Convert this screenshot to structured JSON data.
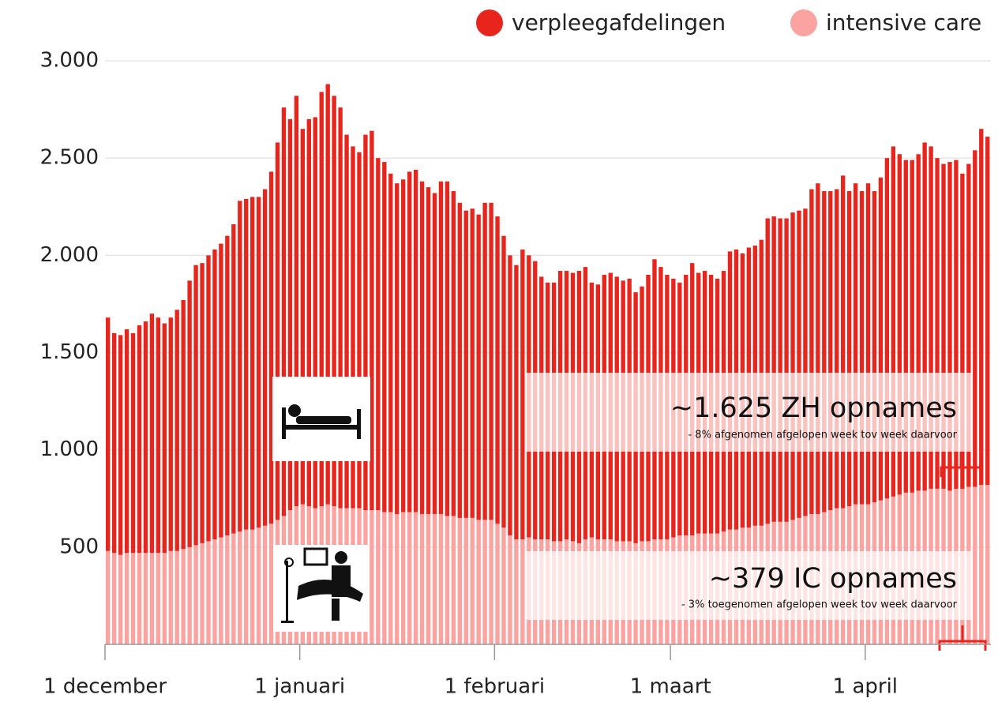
{
  "chart_data": {
    "type": "stacked_bar",
    "categories": [
      "1 december",
      null,
      null,
      null,
      null,
      null,
      null,
      null,
      null,
      null,
      null,
      null,
      null,
      null,
      null,
      null,
      null,
      null,
      null,
      null,
      null,
      null,
      null,
      null,
      null,
      null,
      null,
      null,
      null,
      null,
      null,
      "1 januari",
      null,
      null,
      null,
      null,
      null,
      null,
      null,
      null,
      null,
      null,
      null,
      null,
      null,
      null,
      null,
      null,
      null,
      null,
      null,
      null,
      null,
      null,
      null,
      null,
      null,
      null,
      null,
      null,
      null,
      null,
      "1 februari",
      null,
      null,
      null,
      null,
      null,
      null,
      null,
      null,
      null,
      null,
      null,
      null,
      null,
      null,
      null,
      null,
      null,
      null,
      null,
      null,
      null,
      null,
      null,
      null,
      null,
      null,
      null,
      "1 maart",
      null,
      null,
      null,
      null,
      null,
      null,
      null,
      null,
      null,
      null,
      null,
      null,
      null,
      null,
      null,
      null,
      null,
      null,
      null,
      null,
      null,
      null,
      null,
      null,
      null,
      null,
      null,
      null,
      null,
      null,
      "1 april",
      null,
      null,
      null,
      null,
      null,
      null,
      null,
      null,
      null,
      null,
      null,
      null,
      null,
      null,
      null,
      null,
      null,
      null,
      null
    ],
    "series": [
      {
        "name": "intensive care",
        "color": "#fba3a0",
        "values": [
          480,
          470,
          460,
          470,
          470,
          470,
          470,
          470,
          470,
          470,
          480,
          480,
          490,
          500,
          510,
          520,
          530,
          540,
          550,
          560,
          570,
          580,
          590,
          590,
          600,
          610,
          620,
          640,
          660,
          690,
          710,
          720,
          710,
          700,
          710,
          720,
          710,
          700,
          700,
          700,
          700,
          690,
          690,
          690,
          680,
          680,
          670,
          680,
          680,
          680,
          670,
          670,
          670,
          670,
          660,
          660,
          650,
          650,
          650,
          640,
          640,
          640,
          620,
          600,
          560,
          540,
          540,
          550,
          540,
          540,
          540,
          530,
          530,
          540,
          530,
          520,
          540,
          550,
          540,
          540,
          540,
          530,
          530,
          530,
          520,
          530,
          530,
          540,
          540,
          540,
          550,
          560,
          560,
          560,
          570,
          570,
          570,
          570,
          580,
          590,
          590,
          600,
          600,
          610,
          610,
          620,
          630,
          630,
          630,
          640,
          650,
          660,
          670,
          670,
          680,
          690,
          700,
          700,
          710,
          720,
          720,
          720,
          730,
          740,
          750,
          760,
          770,
          780,
          780,
          790,
          790,
          800,
          800,
          800,
          790,
          800,
          800,
          810,
          810,
          820,
          820
        ]
      },
      {
        "name": "verpleegafdelingen",
        "color": "#e8251c",
        "values": [
          1200,
          1130,
          1130,
          1150,
          1130,
          1170,
          1190,
          1230,
          1210,
          1180,
          1200,
          1240,
          1280,
          1370,
          1440,
          1440,
          1470,
          1490,
          1510,
          1540,
          1590,
          1700,
          1700,
          1710,
          1700,
          1730,
          1810,
          1940,
          2100,
          2010,
          2110,
          1930,
          1990,
          2010,
          2130,
          2160,
          2110,
          2060,
          1920,
          1860,
          1830,
          1930,
          1950,
          1810,
          1800,
          1740,
          1700,
          1710,
          1750,
          1760,
          1710,
          1680,
          1650,
          1710,
          1720,
          1670,
          1620,
          1580,
          1590,
          1570,
          1630,
          1630,
          1580,
          1500,
          1440,
          1410,
          1490,
          1450,
          1430,
          1350,
          1320,
          1330,
          1390,
          1380,
          1380,
          1400,
          1400,
          1310,
          1310,
          1360,
          1370,
          1360,
          1340,
          1350,
          1290,
          1310,
          1370,
          1440,
          1400,
          1360,
          1330,
          1300,
          1340,
          1400,
          1340,
          1350,
          1330,
          1310,
          1340,
          1430,
          1440,
          1410,
          1440,
          1440,
          1470,
          1570,
          1570,
          1560,
          1560,
          1580,
          1580,
          1580,
          1670,
          1700,
          1650,
          1640,
          1640,
          1710,
          1620,
          1650,
          1610,
          1650,
          1600,
          1660,
          1750,
          1800,
          1750,
          1710,
          1710,
          1730,
          1790,
          1760,
          1700,
          1670,
          1690,
          1690,
          1620,
          1660,
          1730,
          1830,
          1790
        ]
      }
    ],
    "legend_order": [
      "verpleegafdelingen",
      "intensive care"
    ],
    "ylim": [
      0,
      3000
    ],
    "yticks": [
      {
        "value": 500,
        "label": "500"
      },
      {
        "value": 1000,
        "label": "1.000"
      },
      {
        "value": 1500,
        "label": "1.500"
      },
      {
        "value": 2000,
        "label": "2.000"
      },
      {
        "value": 2500,
        "label": "2.500"
      },
      {
        "value": 3000,
        "label": "3.000"
      }
    ],
    "grid": true,
    "annotations": [
      {
        "title": "~1.625 ZH opnames",
        "text": "- 8% afgenomen afgelopen week tov week daarvoor"
      },
      {
        "title": "~379 IC opnames",
        "text": "- 3% toegenomen afgelopen week tov week daarvoor"
      }
    ]
  }
}
